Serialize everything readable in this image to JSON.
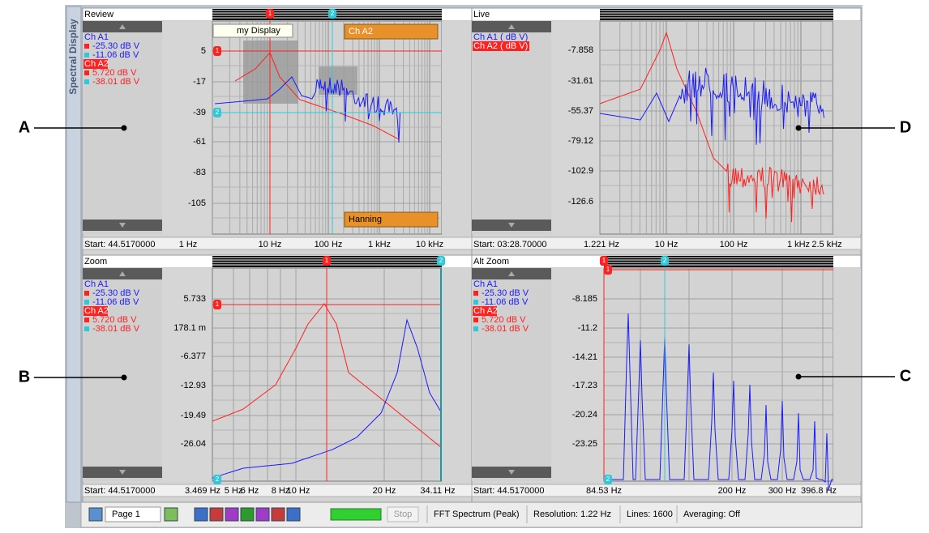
{
  "sidebar_tab": "Spectral Display",
  "callouts": [
    "A",
    "B",
    "C",
    "D"
  ],
  "panels": [
    {
      "title": "Review",
      "legend": [
        "Ch A1",
        "-25.30  dB V",
        "-11.06  dB V",
        "Ch A2",
        "5.720  dB V",
        "-38.01  dB V"
      ],
      "start": "Start: 44.5170000",
      "y_tick_labels": [
        "5",
        "-17",
        "-39",
        "-61",
        "-83",
        "-105"
      ],
      "x_tick_labels": [
        "1 Hz",
        "10 Hz",
        "100 Hz",
        "1 kHz",
        "10 kHz"
      ],
      "cursors": [
        "1",
        "2"
      ],
      "overlays": [
        "my Display",
        "Ch A2",
        "Hanning"
      ]
    },
    {
      "title": "Live",
      "legend": [
        "Ch A1 ( dB V)",
        "Ch A2 ( dB V)"
      ],
      "start": "Start: 03:28.70000",
      "y_tick_labels": [
        "-7.858",
        "-31.61",
        "-55.37",
        "-79.12",
        "-102.9",
        "-126.6"
      ],
      "x_tick_labels": [
        "1.221 Hz",
        "10 Hz",
        "100 Hz",
        "1 kHz",
        "2.5 kHz"
      ]
    },
    {
      "title": "Zoom",
      "legend": [
        "Ch A1",
        "-25.30  dB V",
        "-11.06  dB V",
        "Ch A2",
        "5.720  dB V",
        "-38.01  dB V"
      ],
      "start": "Start: 44.5170000",
      "y_tick_labels": [
        "5.733",
        "178.1 m",
        "-6.377",
        "-12.93",
        "-19.49",
        "-26.04"
      ],
      "x_tick_labels": [
        "3.469 Hz",
        "5 Hz",
        "6 Hz",
        "8 Hz",
        "10 Hz",
        "20 Hz",
        "34.11 Hz"
      ],
      "cursors": [
        "1",
        "2"
      ]
    },
    {
      "title": "Alt Zoom",
      "legend": [
        "Ch A1",
        "-25.30  dB V",
        "-11.06  dB V",
        "Ch A2",
        "5.720  dB V",
        "-38.01  dB V"
      ],
      "start": "Start: 44.5170000",
      "y_tick_labels": [
        "-8.185",
        "-11.2",
        "-14.21",
        "-17.23",
        "-20.24",
        "-23.25"
      ],
      "x_tick_labels": [
        "84.53 Hz",
        "200 Hz",
        "300 Hz",
        "396.8 Hz"
      ],
      "cursors": [
        "1",
        "2"
      ]
    }
  ],
  "toolbar": {
    "page": "Page 1",
    "stop": "Stop",
    "status": [
      "FFT Spectrum (Peak)",
      "Resolution: 1.22 Hz",
      "Lines: 1600",
      "Averaging: Off"
    ]
  }
}
